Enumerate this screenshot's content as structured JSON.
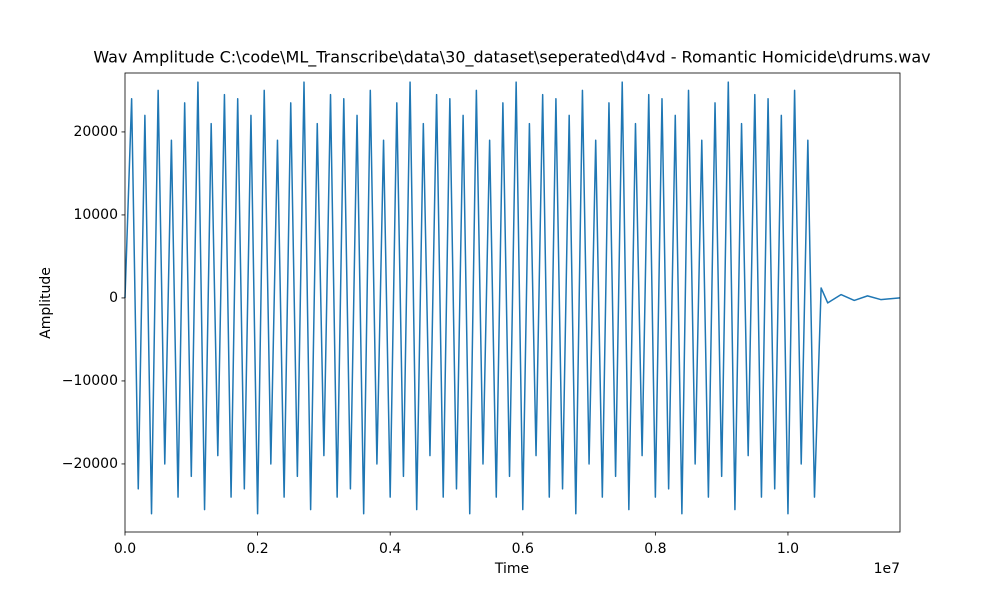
{
  "chart_data": {
    "type": "line",
    "title": "Wav Amplitude C:\\code\\ML_Transcribe\\data\\30_dataset\\seperated\\d4vd - Romantic Homicide\\drums.wav",
    "x_label": "Time",
    "y_label": "Amplitude",
    "x_offset_label": "1e7",
    "xlim": [
      0,
      11690000
    ],
    "ylim": [
      -28200,
      27100
    ],
    "xticks": [
      {
        "value": 0,
        "label": "0.0"
      },
      {
        "value": 2000000,
        "label": "0.2"
      },
      {
        "value": 4000000,
        "label": "0.4"
      },
      {
        "value": 6000000,
        "label": "0.6"
      },
      {
        "value": 8000000,
        "label": "0.8"
      },
      {
        "value": 10000000,
        "label": "1.0"
      }
    ],
    "yticks": [
      {
        "value": -20000,
        "label": "−20000"
      },
      {
        "value": -10000,
        "label": "−10000"
      },
      0,
      10000,
      20000
    ],
    "series": [
      {
        "color": "#1f77b4",
        "x": [
          0,
          100000,
          200000,
          300000,
          400000,
          500000,
          600000,
          700000,
          800000,
          900000,
          1000000,
          1100000,
          1200000,
          1300000,
          1400000,
          1500000,
          1600000,
          1700000,
          1800000,
          1900000,
          2000000,
          2100000,
          2200000,
          2300000,
          2400000,
          2500000,
          2600000,
          2700000,
          2800000,
          2900000,
          3000000,
          3100000,
          3200000,
          3300000,
          3400000,
          3500000,
          3600000,
          3700000,
          3800000,
          3900000,
          4000000,
          4100000,
          4200000,
          4300000,
          4400000,
          4500000,
          4600000,
          4700000,
          4800000,
          4900000,
          5000000,
          5100000,
          5200000,
          5300000,
          5400000,
          5500000,
          5600000,
          5700000,
          5800000,
          5900000,
          6000000,
          6100000,
          6200000,
          6300000,
          6400000,
          6500000,
          6600000,
          6700000,
          6800000,
          6900000,
          7000000,
          7100000,
          7200000,
          7300000,
          7400000,
          7500000,
          7600000,
          7700000,
          7800000,
          7900000,
          8000000,
          8100000,
          8200000,
          8300000,
          8400000,
          8500000,
          8600000,
          8700000,
          8800000,
          8900000,
          9000000,
          9100000,
          9200000,
          9300000,
          9400000,
          9500000,
          9600000,
          9700000,
          9800000,
          9900000,
          10000000,
          10100000,
          10200000,
          10300000,
          10400000,
          10500000,
          10600000,
          10800000,
          11000000,
          11200000,
          11400000,
          11690000
        ],
        "values": [
          0,
          24000,
          -23000,
          22000,
          -26000,
          25000,
          -20000,
          19000,
          -24000,
          23500,
          -21500,
          26000,
          -25500,
          21000,
          -19000,
          24500,
          -24000,
          24000,
          -23000,
          22000,
          -26000,
          25000,
          -20000,
          19000,
          -24000,
          23500,
          -21500,
          26000,
          -25500,
          21000,
          -19000,
          24500,
          -24000,
          24000,
          -23000,
          22000,
          -26000,
          25000,
          -20000,
          19000,
          -24000,
          23500,
          -21500,
          26000,
          -25500,
          21000,
          -19000,
          24500,
          -24000,
          24000,
          -23000,
          22000,
          -26000,
          25000,
          -20000,
          19000,
          -24000,
          23500,
          -21500,
          26000,
          -25500,
          21000,
          -19000,
          24500,
          -24000,
          24000,
          -23000,
          22000,
          -26000,
          25000,
          -20000,
          19000,
          -24000,
          23500,
          -21500,
          26000,
          -25500,
          21000,
          -19000,
          24500,
          -24000,
          24000,
          -23000,
          22000,
          -26000,
          25000,
          -20000,
          19000,
          -24000,
          23500,
          -21500,
          26000,
          -25500,
          21000,
          -19000,
          24500,
          -24000,
          24000,
          -23000,
          22000,
          -26000,
          25000,
          -20000,
          19000,
          -24000,
          1200,
          -600,
          400,
          -300,
          250,
          -200,
          0
        ]
      }
    ]
  }
}
